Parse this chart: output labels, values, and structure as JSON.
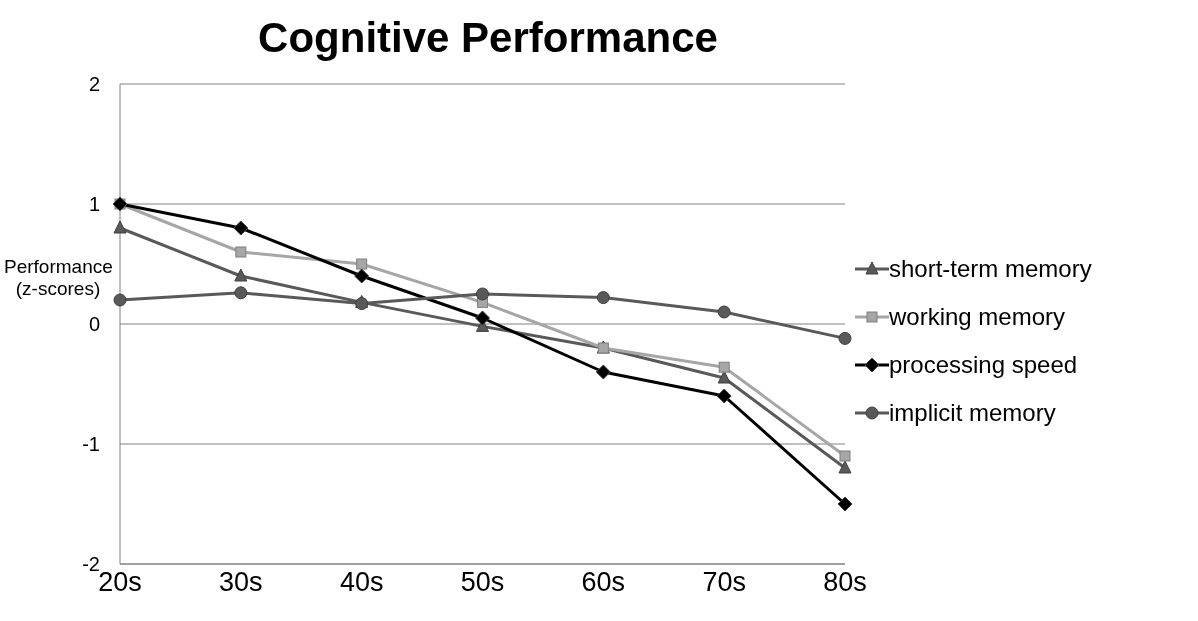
{
  "chart_data": {
    "type": "line",
    "title": "Cognitive Performance",
    "ylabel": "Performance (z-scores)",
    "categories": [
      "20s",
      "30s",
      "40s",
      "50s",
      "60s",
      "70s",
      "80s"
    ],
    "series": [
      {
        "name": "short-term memory",
        "color": "#595959",
        "marker": "triangle",
        "values": [
          0.8,
          0.4,
          0.18,
          -0.02,
          -0.2,
          -0.45,
          -1.2
        ]
      },
      {
        "name": "working memory",
        "color": "#a6a6a6",
        "marker": "square",
        "values": [
          1.0,
          0.6,
          0.5,
          0.18,
          -0.2,
          -0.36,
          -1.1
        ]
      },
      {
        "name": "processing speed",
        "color": "#000000",
        "marker": "diamond",
        "values": [
          1.0,
          0.8,
          0.4,
          0.05,
          -0.4,
          -0.6,
          -1.5
        ]
      },
      {
        "name": "implicit memory",
        "color": "#595959",
        "marker": "circle",
        "values": [
          0.2,
          0.26,
          0.17,
          0.25,
          0.22,
          0.1,
          -0.12
        ]
      }
    ],
    "ylim": [
      -2,
      2
    ],
    "yticks": [
      -2,
      -1,
      0,
      1,
      2
    ],
    "grid": "y",
    "legend": "right",
    "line_style": "solid"
  }
}
